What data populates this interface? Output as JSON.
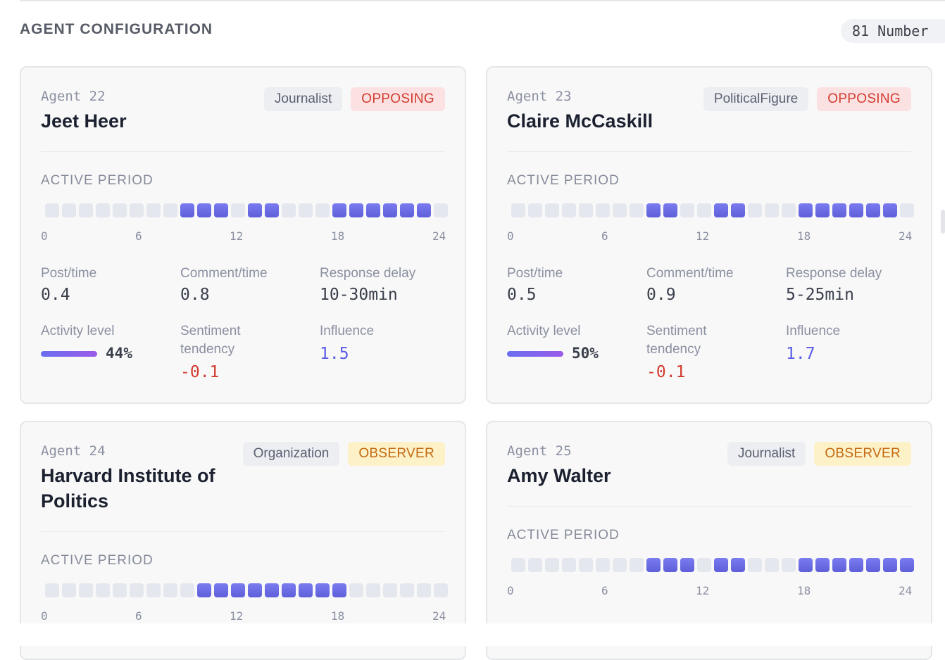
{
  "section": {
    "title": "AGENT CONFIGURATION",
    "count_label": "81 Number"
  },
  "labels": {
    "active_period": "ACTIVE PERIOD",
    "post": "Post/time",
    "comment": "Comment/time",
    "delay": "Response delay",
    "activity": "Activity level",
    "sentiment": "Sentiment tendency",
    "influence": "Influence"
  },
  "axis_ticks": [
    "0",
    "6",
    "12",
    "18",
    "24"
  ],
  "colors": {
    "accent": "#5e5fd9",
    "opposing_bg": "#fbe1e1",
    "opposing_fg": "#d23b2f",
    "observer_bg": "#fdf1c7",
    "observer_fg": "#c26a13"
  },
  "agents": [
    {
      "id": "Agent 22",
      "name": "Jeet Heer",
      "type": "Journalist",
      "stance": "OPPOSING",
      "active_hours": [
        0,
        0,
        0,
        0,
        0,
        0,
        0,
        0,
        1,
        1,
        1,
        0,
        1,
        1,
        0,
        0,
        0,
        1,
        1,
        1,
        1,
        1,
        1,
        0
      ],
      "post": "0.4",
      "comment": "0.8",
      "delay": "10-30min",
      "activity": "44%",
      "activity_level": 0.44,
      "sentiment": "-0.1",
      "influence": "1.5"
    },
    {
      "id": "Agent 23",
      "name": "Claire McCaskill",
      "type": "PoliticalFigure",
      "stance": "OPPOSING",
      "active_hours": [
        0,
        0,
        0,
        0,
        0,
        0,
        0,
        0,
        1,
        1,
        0,
        0,
        1,
        1,
        0,
        0,
        0,
        1,
        1,
        1,
        1,
        1,
        1,
        0
      ],
      "post": "0.5",
      "comment": "0.9",
      "delay": "5-25min",
      "activity": "50%",
      "activity_level": 0.5,
      "sentiment": "-0.1",
      "influence": "1.7"
    },
    {
      "id": "Agent 24",
      "name": "Harvard Institute of Politics",
      "type": "Organization",
      "stance": "OBSERVER",
      "active_hours": [
        0,
        0,
        0,
        0,
        0,
        0,
        0,
        0,
        0,
        1,
        1,
        1,
        1,
        1,
        1,
        1,
        1,
        1,
        0,
        0,
        0,
        0,
        0,
        0
      ]
    },
    {
      "id": "Agent 25",
      "name": "Amy Walter",
      "type": "Journalist",
      "stance": "OBSERVER",
      "active_hours": [
        0,
        0,
        0,
        0,
        0,
        0,
        0,
        0,
        1,
        1,
        1,
        0,
        1,
        1,
        0,
        0,
        0,
        1,
        1,
        1,
        1,
        1,
        1,
        1
      ]
    }
  ]
}
